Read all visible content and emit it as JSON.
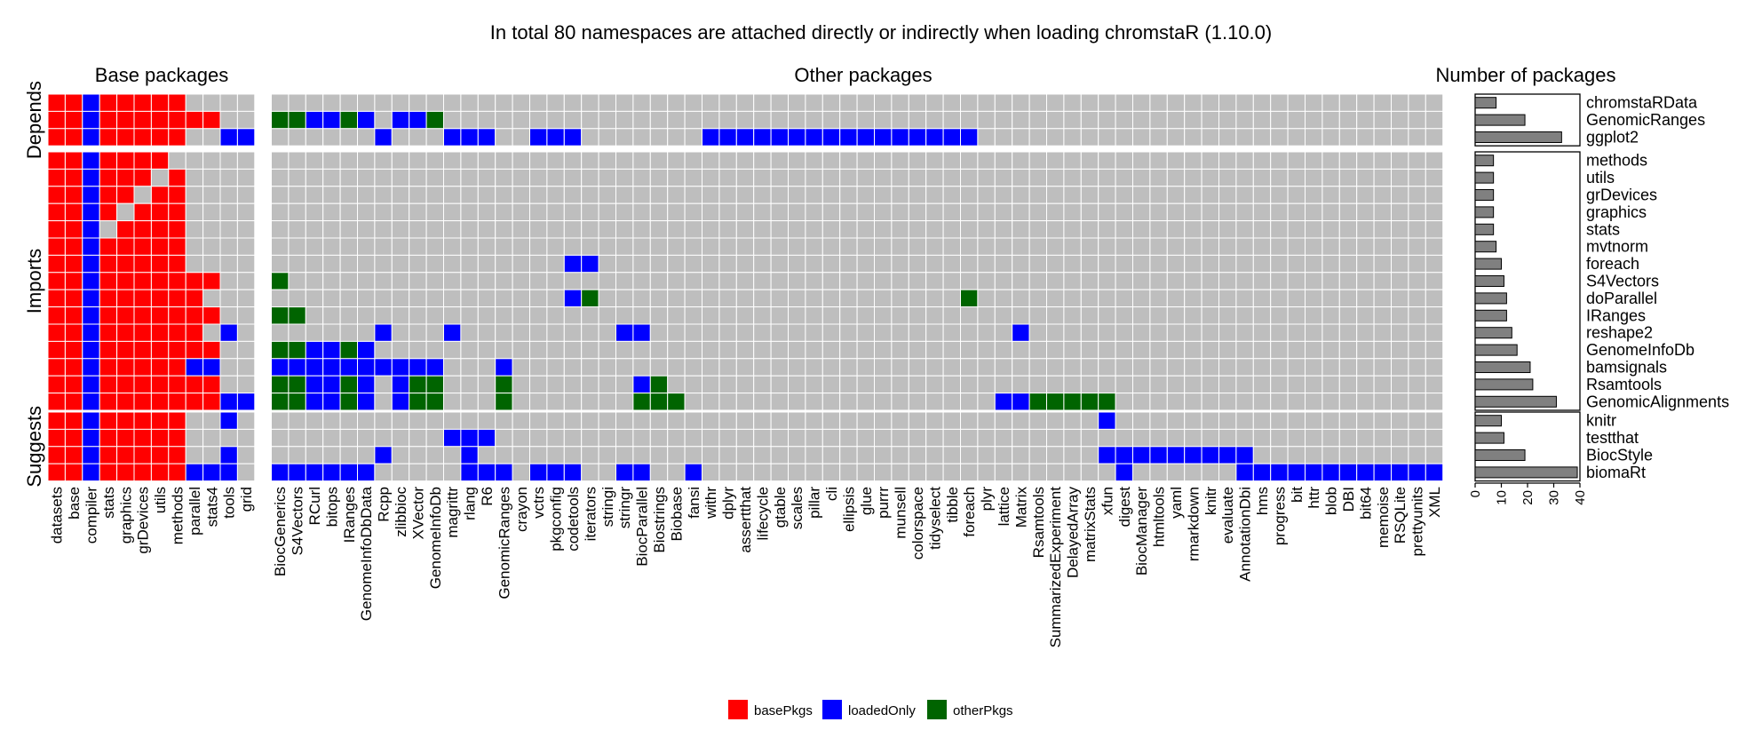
{
  "chart_data": {
    "type": "heatmap",
    "title": "In total 80 namespaces are attached directly or indirectly when loading chromstaR (1.10.0)",
    "panel_titles": {
      "base": "Base packages",
      "other": "Other packages",
      "count": "Number of packages"
    },
    "groups": [
      "Depends",
      "Imports",
      "Suggests"
    ],
    "rows": [
      {
        "name": "chromstaRData",
        "group": "Depends",
        "count": 8
      },
      {
        "name": "GenomicRanges",
        "group": "Depends",
        "count": 19
      },
      {
        "name": "ggplot2",
        "group": "Depends",
        "count": 33
      },
      {
        "name": "methods",
        "group": "Imports",
        "count": 7
      },
      {
        "name": "utils",
        "group": "Imports",
        "count": 7
      },
      {
        "name": "grDevices",
        "group": "Imports",
        "count": 7
      },
      {
        "name": "graphics",
        "group": "Imports",
        "count": 7
      },
      {
        "name": "stats",
        "group": "Imports",
        "count": 7
      },
      {
        "name": "mvtnorm",
        "group": "Imports",
        "count": 8
      },
      {
        "name": "foreach",
        "group": "Imports",
        "count": 10
      },
      {
        "name": "S4Vectors",
        "group": "Imports",
        "count": 11
      },
      {
        "name": "doParallel",
        "group": "Imports",
        "count": 12
      },
      {
        "name": "IRanges",
        "group": "Imports",
        "count": 12
      },
      {
        "name": "reshape2",
        "group": "Imports",
        "count": 14
      },
      {
        "name": "GenomeInfoDb",
        "group": "Imports",
        "count": 16
      },
      {
        "name": "bamsignals",
        "group": "Imports",
        "count": 21
      },
      {
        "name": "Rsamtools",
        "group": "Imports",
        "count": 22
      },
      {
        "name": "GenomicAlignments",
        "group": "Imports",
        "count": 31
      },
      {
        "name": "knitr",
        "group": "Suggests",
        "count": 10
      },
      {
        "name": "testthat",
        "group": "Suggests",
        "count": 11
      },
      {
        "name": "BiocStyle",
        "group": "Suggests",
        "count": 19
      },
      {
        "name": "biomaRt",
        "group": "Suggests",
        "count": 39
      }
    ],
    "base_columns": [
      "datasets",
      "base",
      "compiler",
      "stats",
      "graphics",
      "grDevices",
      "utils",
      "methods",
      "parallel",
      "stats4",
      "tools",
      "grid"
    ],
    "other_columns": [
      "BiocGenerics",
      "S4Vectors",
      "RCurl",
      "bitops",
      "IRanges",
      "GenomeInfoDbData",
      "Rcpp",
      "zlibbioc",
      "XVector",
      "GenomeInfoDb",
      "magrittr",
      "rlang",
      "R6",
      "GenomicRanges",
      "crayon",
      "vctrs",
      "pkgconfig",
      "codetools",
      "iterators",
      "stringi",
      "stringr",
      "BiocParallel",
      "Biostrings",
      "Biobase",
      "fansi",
      "withr",
      "dplyr",
      "assertthat",
      "lifecycle",
      "gtable",
      "scales",
      "pillar",
      "cli",
      "ellipsis",
      "glue",
      "purrr",
      "munsell",
      "colorspace",
      "tidyselect",
      "tibble",
      "foreach",
      "plyr",
      "lattice",
      "Matrix",
      "Rsamtools",
      "SummarizedExperiment",
      "DelayedArray",
      "matrixStats",
      "xfun",
      "digest",
      "BiocManager",
      "htmltools",
      "yaml",
      "rmarkdown",
      "knitr",
      "evaluate",
      "AnnotationDbi",
      "hms",
      "progress",
      "bit",
      "httr",
      "blob",
      "DBI",
      "bit64",
      "memoise",
      "RSQLite",
      "prettyunits",
      "XML"
    ],
    "cell_codes": {
      "r": "basePkgs",
      "b": "loadedOnly",
      "g": "otherPkgs",
      ".": "none"
    },
    "matrix": [
      "rrbrrrrr....|..........................................................................",
      "rrbrrrrrrr..|ggbbgb.bbg..........................................................",
      "rrbrrrrr..bb|......b...bbb..bbb.......bbbbbbbbbbbbbbbb............................",
      "rrbrrrr.....|....................................................................",
      "rrbrrr.r....|....................................................................",
      "rrbrr.rr....|....................................................................",
      "rrbr.rrr....|....................................................................",
      "rrb.rrrr....|....................................................................",
      "rrbrrrrr....|....................................................................",
      "rrbrrrrr....|.................bb.................................................",
      "rrbrrrrrrr..|g...................................................................",
      "rrbrrrrrr...|.................bg.....................g............................",
      "rrbrrrrrrr..|gg..................................................................",
      "rrbrrrrrr.b.|......b...b.........bb.....................b..........................",
      "rrbrrrrrrr..|ggbbgb..................................................................",
      "rrbrrrrrbb..|bbbbbbbbbb...b..........................................................",
      "rrbrrrrrrr..|ggbbgb.bgg...g.......bg...........................................",
      "rrbrrrrrrrbb|ggbbgb.bgg...g.......ggg..................bbggggg.....................",
      "rrbrrrrr..b.|................................................b...................",
      "rrbrrrrr....|..........bbb...........................................................",
      "rrbrrrrr..b.|......b....b....................................bbbbbbbbb...........",
      "rrbrrrrrbbb.|bbbbbb.....bbb.bbb..bb..b........................b......bbbbbbbbbbbbb"
    ],
    "x_axis_count": {
      "ticks": [
        0,
        10,
        20,
        30,
        40
      ],
      "xlim": [
        0,
        40
      ]
    },
    "legend": [
      {
        "name": "basePkgs",
        "color": "#ff0000"
      },
      {
        "name": "loadedOnly",
        "color": "#0000ff"
      },
      {
        "name": "otherPkgs",
        "color": "#006400"
      }
    ],
    "legend_position": "bottom",
    "empty_color": "#bebebe",
    "bar_color": "#808080"
  }
}
